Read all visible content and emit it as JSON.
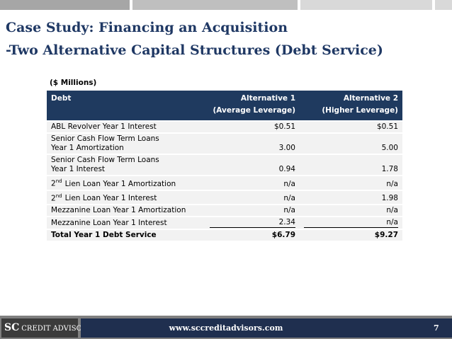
{
  "header": {
    "title_line1": "Case Study: Financing an Acquisition",
    "title_line2": "-Two Alternative Capital Structures (Debt Service)"
  },
  "table": {
    "units": "($ Millions)",
    "columns": [
      [
        "Debt"
      ],
      [
        "Alternative 1",
        "(Average Leverage)"
      ],
      [
        "Alternative 2",
        "(Higher Leverage)"
      ]
    ],
    "rows": [
      {
        "label": {
          "lines": [
            "ABL Revolver Year 1 Interest"
          ]
        },
        "values": [
          "$0.51",
          "$0.51"
        ]
      },
      {
        "label": {
          "lines": [
            "Senior Cash Flow Term Loans",
            "Year 1 Amortization"
          ]
        },
        "values": [
          "3.00",
          "5.00"
        ]
      },
      {
        "label": {
          "lines": [
            "Senior Cash Flow Term Loans",
            "Year 1 Interest"
          ]
        },
        "values": [
          "0.94",
          "1.78"
        ]
      },
      {
        "label": {
          "ordinal": "2",
          "suffix": "nd",
          "rest": "Lien Loan Year 1 Amortization"
        },
        "values": [
          "n/a",
          "n/a"
        ]
      },
      {
        "label": {
          "ordinal": "2",
          "suffix": "nd",
          "rest": "Lien Loan Year 1 Interest"
        },
        "values": [
          "n/a",
          "1.98"
        ]
      },
      {
        "label": {
          "lines": [
            "Mezzanine Loan Year 1 Amortization"
          ]
        },
        "values": [
          "n/a",
          "n/a"
        ]
      },
      {
        "label": {
          "lines": [
            "Mezzanine Loan Year 1 Interest"
          ]
        },
        "values": [
          "2.34",
          "n/a"
        ],
        "underline": true
      },
      {
        "label": {
          "lines": [
            "Total Year 1 Debt Service"
          ]
        },
        "values": [
          "$6.79",
          "$9.27"
        ],
        "bold": true
      }
    ]
  },
  "footer": {
    "logo_mark": "SC",
    "logo": "CREDIT ADVISORS",
    "url": "www.sccreditadvisors.com",
    "page": "7"
  }
}
